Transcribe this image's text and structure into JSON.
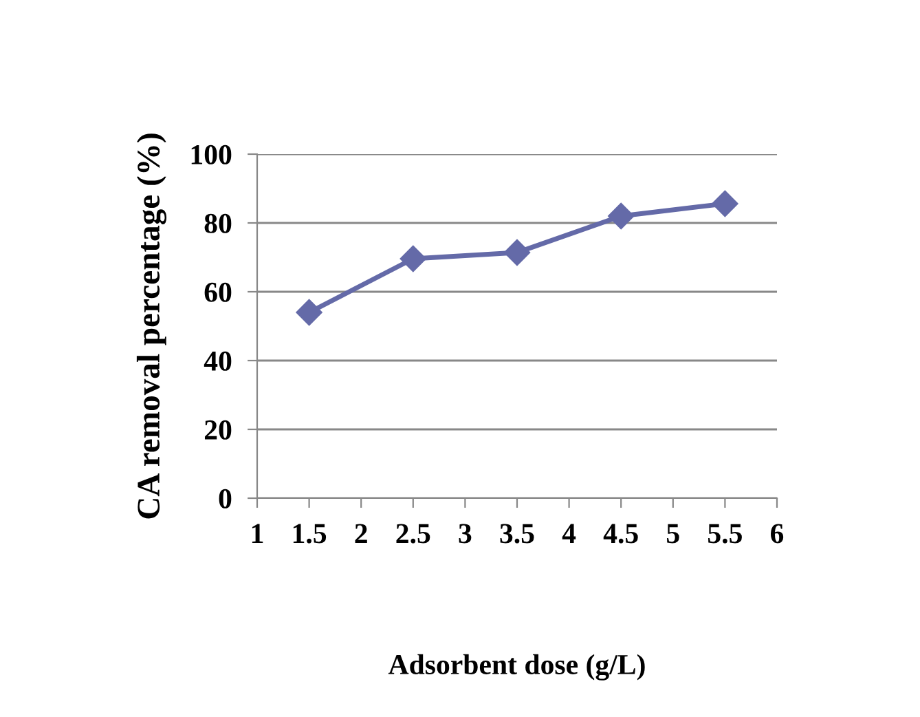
{
  "chart_data": {
    "type": "line",
    "xlabel": "Adsorbent dose (g/L)",
    "ylabel": "CA removal percentage (%)",
    "x": [
      1.5,
      2.5,
      3.5,
      4.5,
      5.5
    ],
    "series": [
      {
        "color": "#646aa8",
        "values": [
          54,
          69.6,
          71.4,
          82,
          85.6
        ]
      }
    ],
    "xlim": [
      1,
      6
    ],
    "xticks": [
      1,
      1.5,
      2,
      2.5,
      3,
      3.5,
      4,
      4.5,
      5,
      5.5,
      6
    ],
    "ylim": [
      0,
      100
    ],
    "yticks": [
      0,
      20,
      40,
      60,
      80,
      100
    ],
    "grid": "y",
    "marker": "diamond",
    "line_style": "solid"
  }
}
